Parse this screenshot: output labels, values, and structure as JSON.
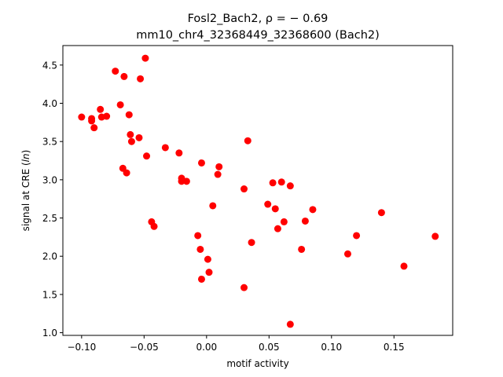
{
  "chart_data": {
    "type": "scatter",
    "title_line1": "Fosl2_Bach2, ρ = − 0.69",
    "title_line2": "mm10_chr4_32368449_32368600 (Bach2)",
    "xlabel": "motif activity",
    "ylabel": "signal at CRE (ln)",
    "xlim": [
      -0.115,
      0.197
    ],
    "ylim": [
      0.965,
      4.755
    ],
    "x_ticks": [
      -0.1,
      -0.05,
      0.0,
      0.05,
      0.1,
      0.15
    ],
    "x_tick_labels": [
      "−0.10",
      "−0.05",
      "0.00",
      "0.05",
      "0.10",
      "0.15"
    ],
    "y_ticks": [
      1.0,
      1.5,
      2.0,
      2.5,
      3.0,
      3.5,
      4.0,
      4.5
    ],
    "y_tick_labels": [
      "1.0",
      "1.5",
      "2.0",
      "2.5",
      "3.0",
      "3.5",
      "4.0",
      "4.5"
    ],
    "grid": false,
    "marker_color": "#ff0000",
    "points": [
      {
        "x": -0.1,
        "y": 3.82
      },
      {
        "x": -0.092,
        "y": 3.8
      },
      {
        "x": -0.092,
        "y": 3.77
      },
      {
        "x": -0.09,
        "y": 3.68
      },
      {
        "x": -0.085,
        "y": 3.92
      },
      {
        "x": -0.084,
        "y": 3.82
      },
      {
        "x": -0.08,
        "y": 3.83
      },
      {
        "x": -0.073,
        "y": 4.42
      },
      {
        "x": -0.069,
        "y": 3.98
      },
      {
        "x": -0.066,
        "y": 4.35
      },
      {
        "x": -0.067,
        "y": 3.15
      },
      {
        "x": -0.064,
        "y": 3.09
      },
      {
        "x": -0.062,
        "y": 3.85
      },
      {
        "x": -0.061,
        "y": 3.59
      },
      {
        "x": -0.06,
        "y": 3.5
      },
      {
        "x": -0.054,
        "y": 3.55
      },
      {
        "x": -0.053,
        "y": 4.32
      },
      {
        "x": -0.049,
        "y": 4.59
      },
      {
        "x": -0.048,
        "y": 3.31
      },
      {
        "x": -0.044,
        "y": 2.45
      },
      {
        "x": -0.042,
        "y": 2.39
      },
      {
        "x": -0.033,
        "y": 3.42
      },
      {
        "x": -0.022,
        "y": 3.35
      },
      {
        "x": -0.02,
        "y": 3.02
      },
      {
        "x": -0.02,
        "y": 2.98
      },
      {
        "x": -0.016,
        "y": 2.98
      },
      {
        "x": -0.007,
        "y": 2.27
      },
      {
        "x": -0.005,
        "y": 2.09
      },
      {
        "x": -0.004,
        "y": 3.22
      },
      {
        "x": -0.004,
        "y": 1.7
      },
      {
        "x": 0.001,
        "y": 1.96
      },
      {
        "x": 0.002,
        "y": 1.79
      },
      {
        "x": 0.005,
        "y": 2.66
      },
      {
        "x": 0.009,
        "y": 3.07
      },
      {
        "x": 0.01,
        "y": 3.17
      },
      {
        "x": 0.03,
        "y": 2.88
      },
      {
        "x": 0.03,
        "y": 1.59
      },
      {
        "x": 0.033,
        "y": 3.51
      },
      {
        "x": 0.036,
        "y": 2.18
      },
      {
        "x": 0.049,
        "y": 2.68
      },
      {
        "x": 0.053,
        "y": 2.96
      },
      {
        "x": 0.055,
        "y": 2.62
      },
      {
        "x": 0.057,
        "y": 2.36
      },
      {
        "x": 0.06,
        "y": 2.97
      },
      {
        "x": 0.062,
        "y": 2.45
      },
      {
        "x": 0.067,
        "y": 2.92
      },
      {
        "x": 0.067,
        "y": 1.11
      },
      {
        "x": 0.076,
        "y": 2.09
      },
      {
        "x": 0.079,
        "y": 2.46
      },
      {
        "x": 0.085,
        "y": 2.61
      },
      {
        "x": 0.113,
        "y": 2.03
      },
      {
        "x": 0.12,
        "y": 2.27
      },
      {
        "x": 0.14,
        "y": 2.57
      },
      {
        "x": 0.158,
        "y": 1.87
      },
      {
        "x": 0.183,
        "y": 2.26
      }
    ]
  }
}
